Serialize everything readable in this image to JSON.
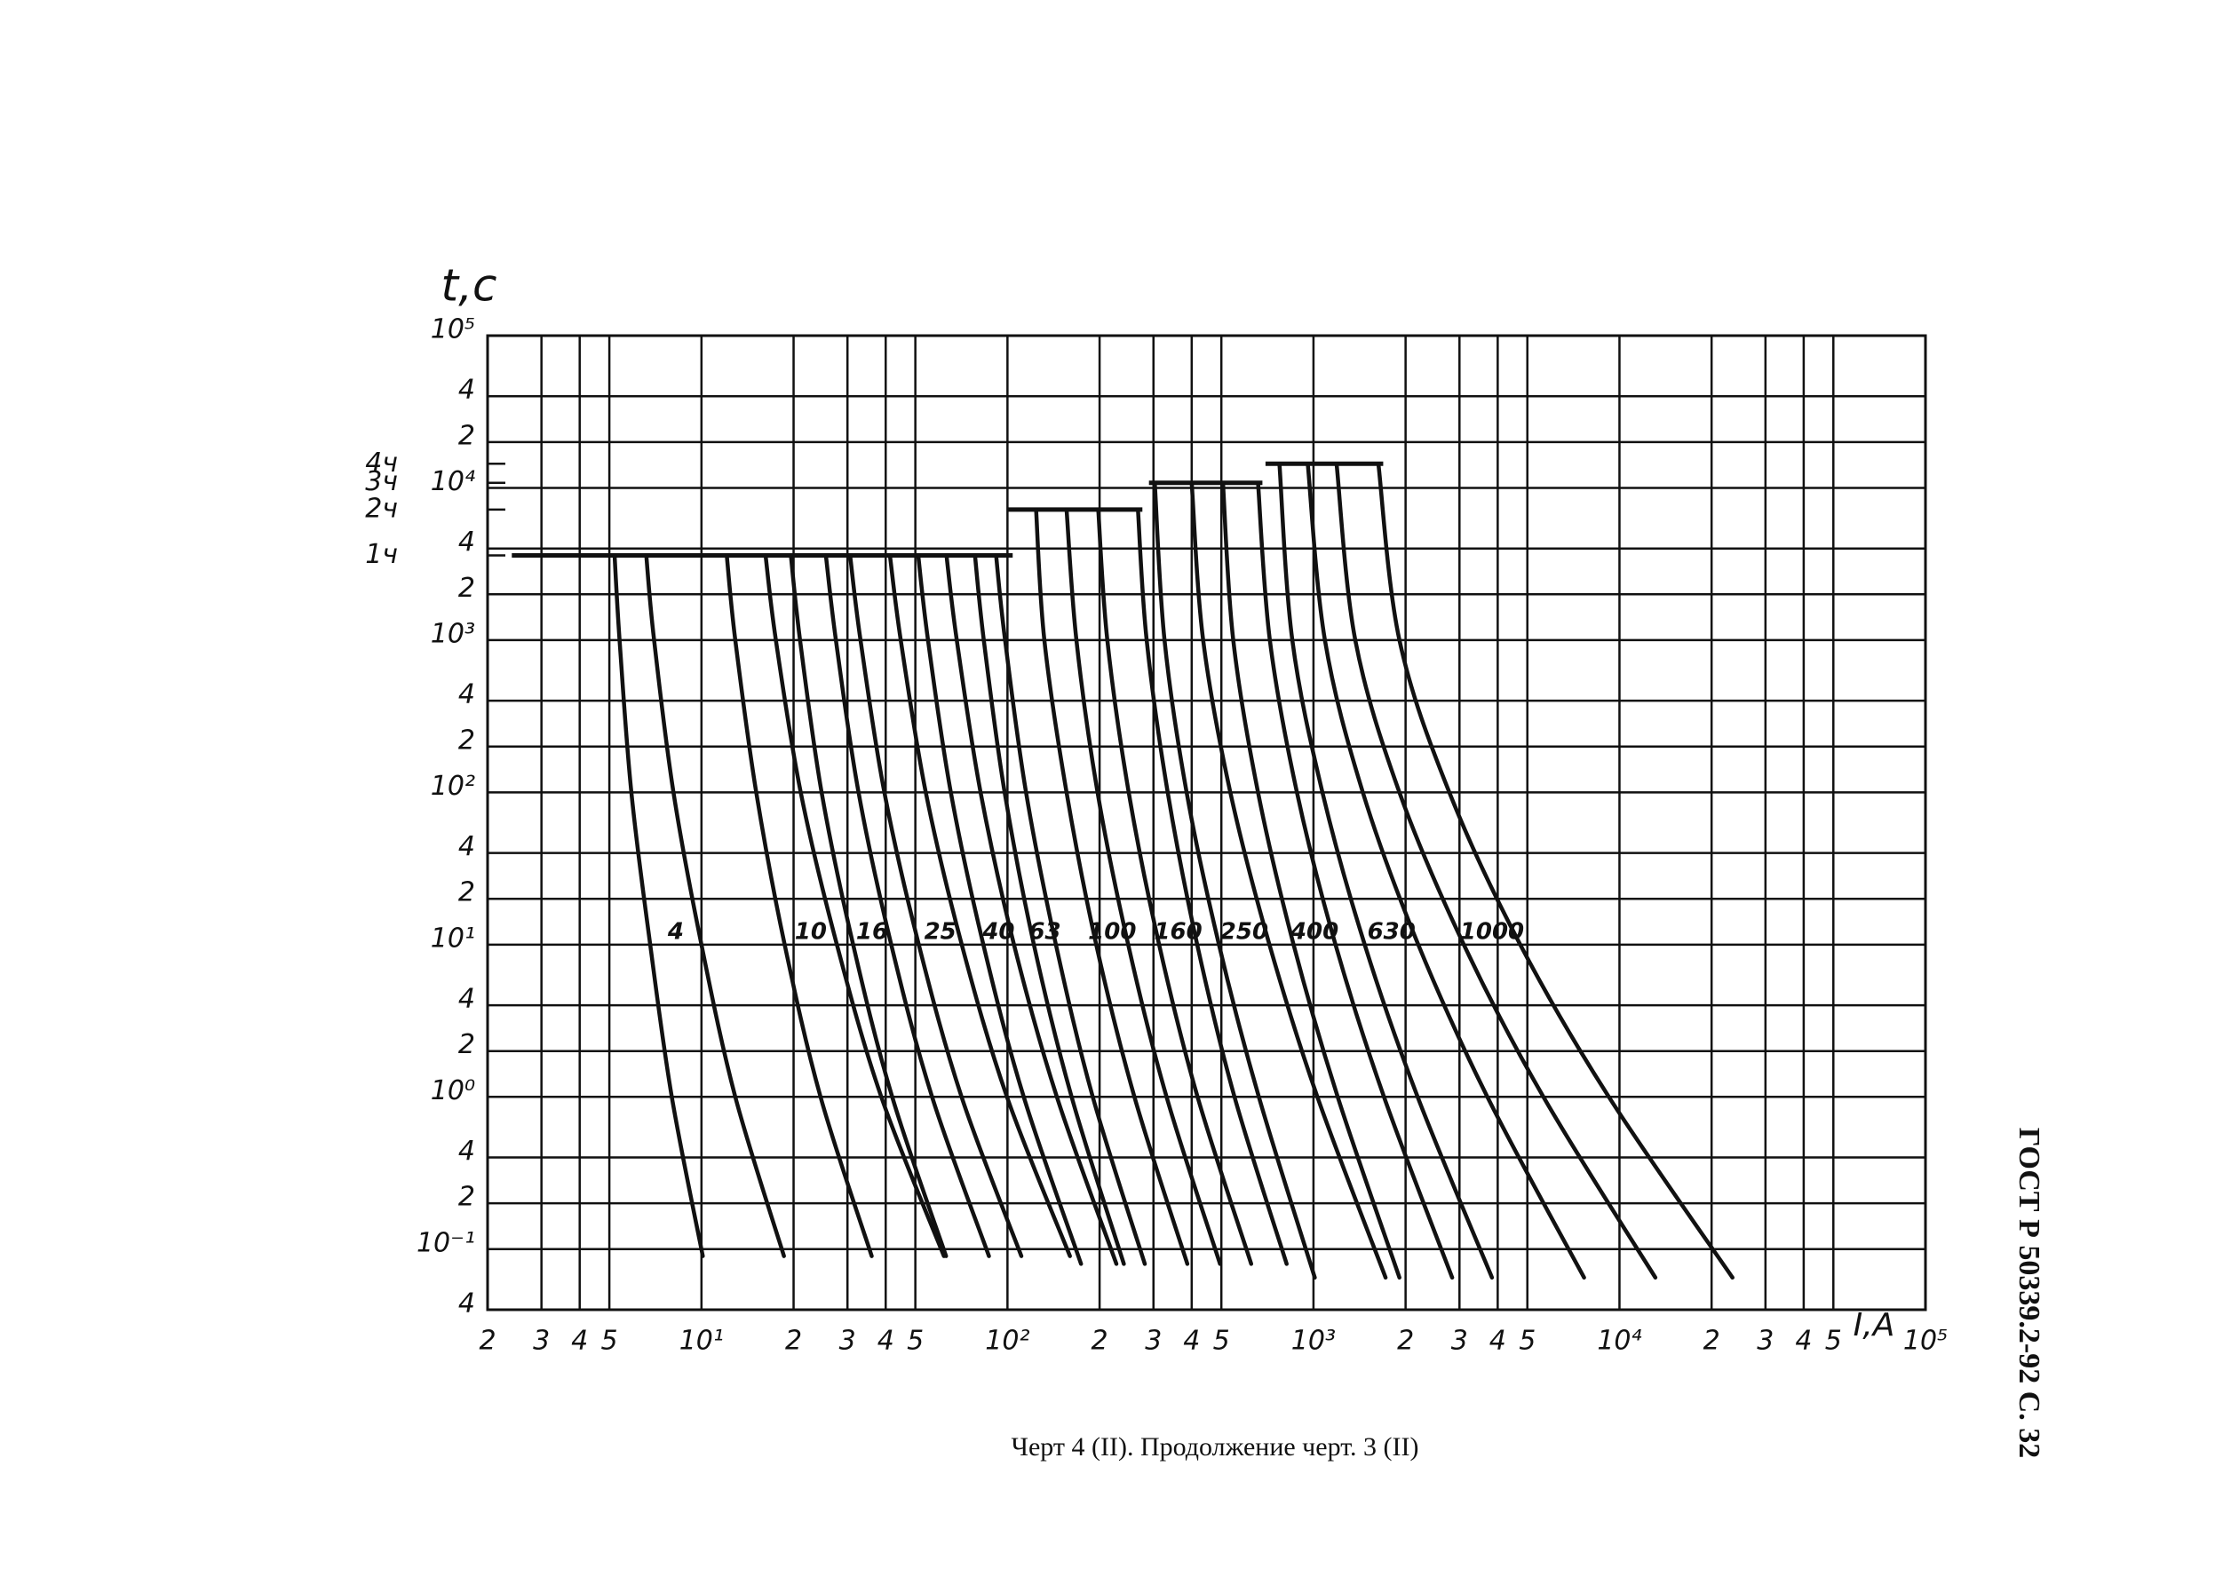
{
  "chart_data": {
    "type": "line",
    "x_label": "I,A",
    "y_label": "t,с",
    "xscale": "log",
    "yscale": "log",
    "xlim": [
      2,
      100000
    ],
    "ylim": [
      0.04,
      100000
    ],
    "grid": true,
    "color": "#111111",
    "xticks": [
      2,
      3,
      4,
      5,
      {
        "value": 10,
        "label": "10¹"
      },
      {
        "value": 20,
        "label": "2"
      },
      {
        "value": 30,
        "label": "3"
      },
      {
        "value": 40,
        "label": "4"
      },
      {
        "value": 50,
        "label": "5"
      },
      {
        "value": 100,
        "label": "10²"
      },
      {
        "value": 200,
        "label": "2"
      },
      {
        "value": 300,
        "label": "3"
      },
      {
        "value": 400,
        "label": "4"
      },
      {
        "value": 500,
        "label": "5"
      },
      {
        "value": 1000,
        "label": "10³"
      },
      {
        "value": 2000,
        "label": "2"
      },
      {
        "value": 3000,
        "label": "3"
      },
      {
        "value": 4000,
        "label": "4"
      },
      {
        "value": 5000,
        "label": "5"
      },
      {
        "value": 10000,
        "label": "10⁴"
      },
      {
        "value": 20000,
        "label": "2"
      },
      {
        "value": 30000,
        "label": "3"
      },
      {
        "value": 40000,
        "label": "4"
      },
      {
        "value": 50000,
        "label": "5"
      },
      {
        "value": 100000,
        "label": "10⁵"
      }
    ],
    "yticks": [
      {
        "value": 0.04,
        "label": "4"
      },
      {
        "value": 0.1,
        "label": "10⁻¹"
      },
      {
        "value": 0.2,
        "label": "2"
      },
      {
        "value": 0.4,
        "label": "4"
      },
      {
        "value": 1,
        "label": "10⁰"
      },
      2,
      4,
      {
        "value": 10,
        "label": "10¹"
      },
      {
        "value": 20,
        "label": "2"
      },
      {
        "value": 40,
        "label": "4"
      },
      {
        "value": 100,
        "label": "10²"
      },
      {
        "value": 200,
        "label": "2"
      },
      {
        "value": 400,
        "label": "4"
      },
      {
        "value": 1000,
        "label": "10³"
      },
      {
        "value": 2000,
        "label": "2"
      },
      {
        "value": 4000,
        "label": "4"
      },
      {
        "value": 10000,
        "label": "10⁴"
      },
      {
        "value": 20000,
        "label": "2"
      },
      {
        "value": 40000,
        "label": "4"
      },
      {
        "value": 100000,
        "label": "10⁵"
      }
    ],
    "hour_ticks": [
      {
        "value": 14400,
        "label": "4ч"
      },
      {
        "value": 10800,
        "label": "3ч"
      },
      {
        "value": 7200,
        "label": "2ч"
      },
      {
        "value": 3600,
        "label": "1ч"
      }
    ],
    "conventional_times": [
      {
        "x": [
          2.4,
          104
        ],
        "values": [
          3600,
          3600
        ]
      },
      {
        "x": [
          100,
          276
        ],
        "values": [
          7200,
          7200
        ]
      },
      {
        "x": [
          290,
          681
        ],
        "values": [
          10800,
          10800
        ]
      },
      {
        "x": [
          697,
          1690
        ],
        "values": [
          14400,
          14400
        ]
      }
    ],
    "series": [
      {
        "name": "4",
        "lines": [
          {
            "x": [
              5.2,
              5.4,
              5.9,
              6.8,
              8.0,
              10.1
            ],
            "values": [
              3600,
              1000,
              100,
              10,
              1,
              0.09
            ]
          },
          {
            "x": [
              6.6,
              7.0,
              8.1,
              10,
              12.9,
              18.6
            ],
            "values": [
              3600,
              1000,
              100,
              10,
              1,
              0.09
            ]
          }
        ]
      },
      {
        "name": "10",
        "lines": [
          {
            "x": [
              12.1,
              12.9,
              15.1,
              18.7,
              24.5,
              36
            ],
            "values": [
              3600,
              1000,
              100,
              10,
              1,
              0.09
            ]
          },
          {
            "x": [
              16.2,
              17.5,
              21.1,
              27.7,
              38.7,
              62
            ],
            "values": [
              3600,
              1000,
              100,
              10,
              1,
              0.09
            ]
          }
        ]
      },
      {
        "name": "16",
        "lines": [
          {
            "x": [
              19.6,
              21,
              24.7,
              31.3,
              42,
              63
            ],
            "values": [
              3600,
              1000,
              100,
              10,
              1,
              0.09
            ]
          },
          {
            "x": [
              25.5,
              27.5,
              32.6,
              41.7,
              56.7,
              87
            ],
            "values": [
              3600,
              1000,
              100,
              10,
              1,
              0.09
            ]
          }
        ]
      },
      {
        "name": "25",
        "lines": [
          {
            "x": [
              30.6,
              33.1,
              39.6,
              51.3,
              70.8,
              111
            ],
            "values": [
              3600,
              1000,
              100,
              10,
              1,
              0.09
            ]
          },
          {
            "x": [
              41.3,
              44.8,
              54.1,
              70.9,
              99.6,
              160
            ],
            "values": [
              3600,
              1000,
              100,
              10,
              1,
              0.09
            ]
          }
        ]
      },
      {
        "name": "40",
        "lines": [
          {
            "x": [
              51.1,
              55,
              65.3,
              83.4,
              113,
              174
            ],
            "values": [
              3600,
              1000,
              100,
              10,
              1,
              0.08
            ]
          },
          {
            "x": [
              63.2,
              68.3,
              81.7,
              105,
              145,
              227
            ],
            "values": [
              3600,
              1000,
              100,
              10,
              1,
              0.08
            ]
          }
        ]
      },
      {
        "name": "63",
        "lines": [
          {
            "x": [
              78.3,
              83.7,
              97.9,
              122,
              162,
              240
            ],
            "values": [
              3600,
              1000,
              100,
              10,
              1,
              0.08
            ]
          },
          {
            "x": [
              91.8,
              98.2,
              115,
              144,
              190,
              281
            ],
            "values": [
              3600,
              1000,
              100,
              10,
              1,
              0.08
            ]
          }
        ]
      },
      {
        "name": "100",
        "lines": [
          {
            "x": [
              124,
              132,
              156,
              195,
              260,
              387
            ],
            "values": [
              7200,
              1000,
              100,
              10,
              1,
              0.08
            ]
          },
          {
            "x": [
              156,
              168,
              197,
              248,
              331,
              495
            ],
            "values": [
              7200,
              1000,
              100,
              10,
              1,
              0.08
            ]
          }
        ]
      },
      {
        "name": "160",
        "lines": [
          {
            "x": [
              198,
              212,
              249,
              313,
              418,
              626
            ],
            "values": [
              7200,
              1000,
              100,
              10,
              1,
              0.08
            ]
          },
          {
            "x": [
              267,
              285,
              334,
              417,
              552,
              817
            ],
            "values": [
              7200,
              1000,
              100,
              10,
              1,
              0.08
            ]
          }
        ]
      },
      {
        "name": "250",
        "lines": [
          {
            "x": [
              303,
              326,
              385,
              491,
              663,
              1010
            ],
            "values": [
              10800,
              1000,
              100,
              10,
              1,
              0.065
            ]
          },
          {
            "x": [
              400,
              436,
              535,
              718,
              1030,
              1720
            ],
            "values": [
              10800,
              1000,
              100,
              10,
              1,
              0.065
            ]
          }
        ]
      },
      {
        "name": "400",
        "lines": [
          {
            "x": [
              506,
              547,
              659,
              861,
              1200,
              1910
            ],
            "values": [
              10800,
              1000,
              100,
              10,
              1,
              0.065
            ]
          },
          {
            "x": [
              659,
              720,
              883,
              1180,
              1700,
              2840
            ],
            "values": [
              10800,
              1000,
              100,
              10,
              1,
              0.065
            ]
          }
        ]
      },
      {
        "name": "630",
        "lines": [
          {
            "x": [
              774,
              853,
              1070,
              1470,
              2190,
              3830
            ],
            "values": [
              14400,
              1000,
              100,
              10,
              1,
              0.065
            ]
          },
          {
            "x": [
              958,
              1090,
              1450,
              2200,
              3700,
              7660
            ],
            "values": [
              14400,
              1000,
              100,
              10,
              1,
              0.065
            ]
          }
        ]
      },
      {
        "name": "1000",
        "lines": [
          {
            "x": [
              1190,
              1370,
              1910,
              3100,
              5640,
              13100
            ],
            "values": [
              14400,
              1000,
              100,
              10,
              1,
              0.065
            ]
          },
          {
            "x": [
              1630,
              1910,
              2780,
              4740,
              9230,
              23400
            ],
            "values": [
              14400,
              1000,
              100,
              10,
              1,
              0.065
            ]
          }
        ]
      }
    ]
  },
  "caption": "Черт 4 (II). Продолжение черт. 3 (II)",
  "stamp": "ГОСТ Р 50339.2-92 С. 32"
}
